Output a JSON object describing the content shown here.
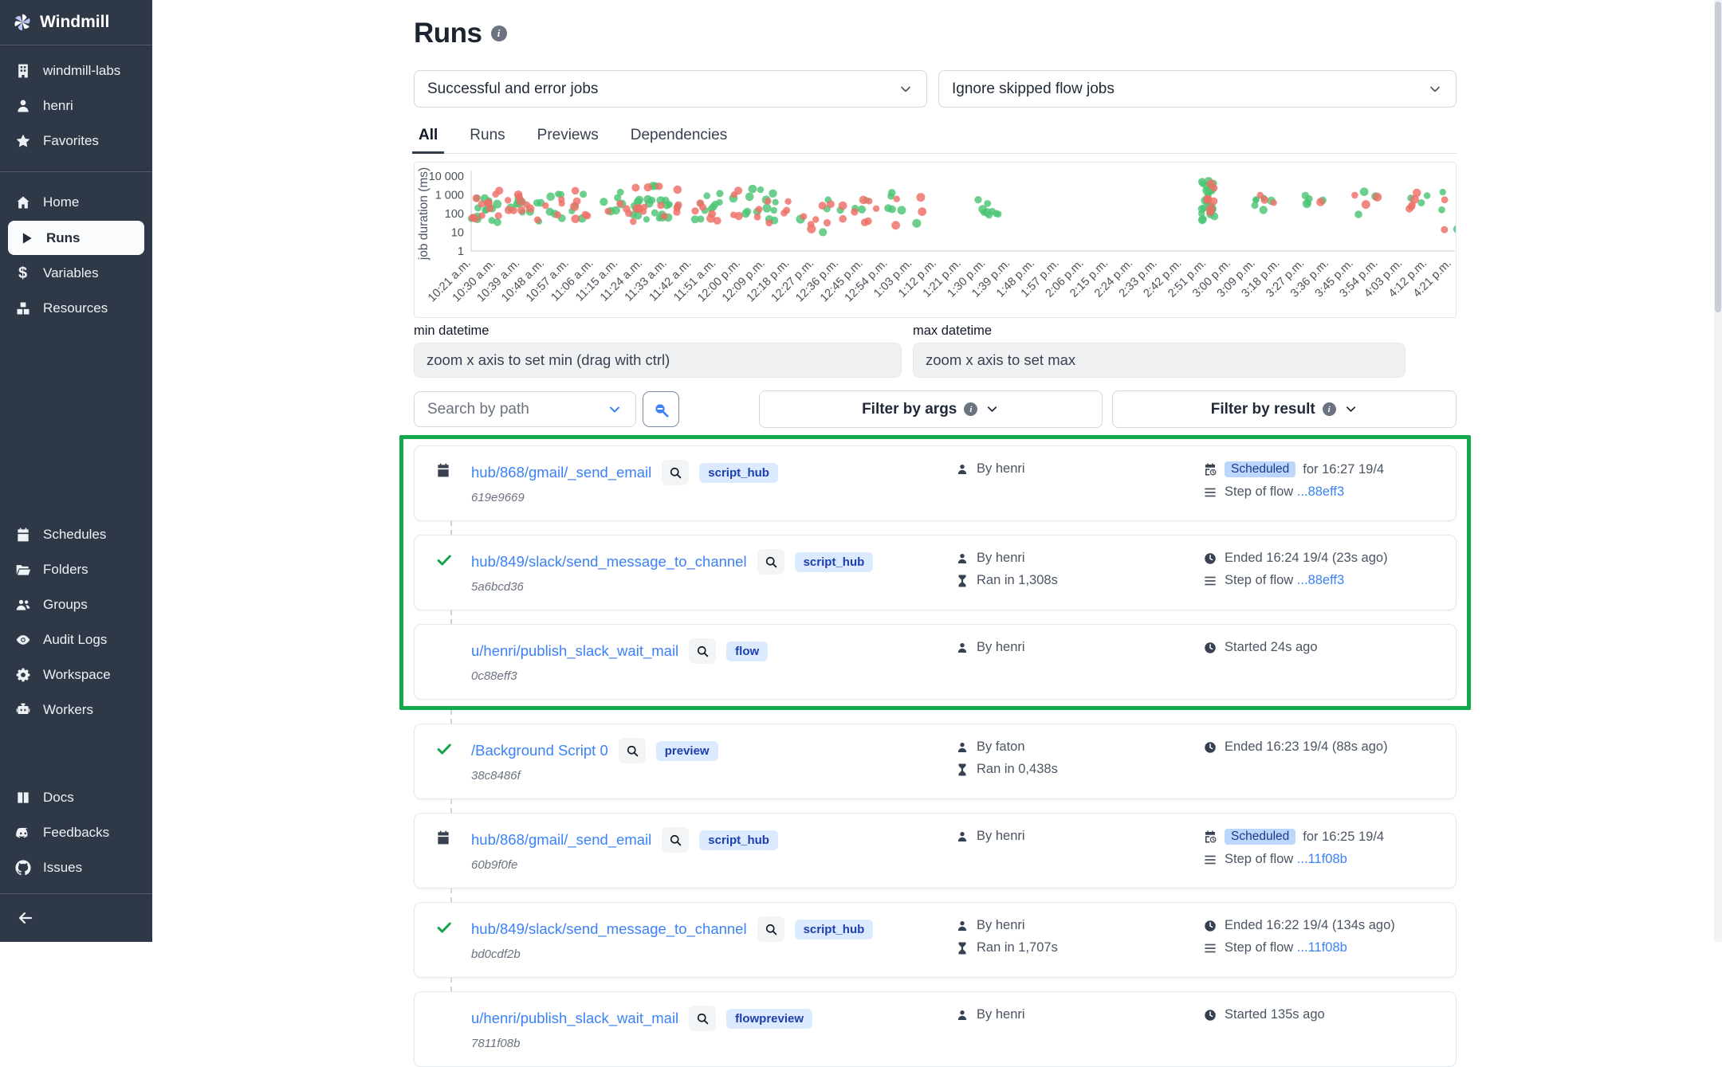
{
  "sidebar": {
    "logo_label": "Windmill",
    "workspace_items": [
      {
        "icon": "building-icon",
        "label": "windmill-labs"
      },
      {
        "icon": "user-icon",
        "label": "henri"
      },
      {
        "icon": "star-icon",
        "label": "Favorites"
      }
    ],
    "nav_items": [
      {
        "icon": "home-icon",
        "label": "Home",
        "active": false
      },
      {
        "icon": "play-icon",
        "label": "Runs",
        "active": true
      },
      {
        "icon": "dollar-icon",
        "label": "Variables",
        "active": false
      },
      {
        "icon": "cubes-icon",
        "label": "Resources",
        "active": false
      }
    ],
    "admin_items": [
      {
        "icon": "calendar-icon",
        "label": "Schedules"
      },
      {
        "icon": "folder-icon",
        "label": "Folders"
      },
      {
        "icon": "groups-icon",
        "label": "Groups"
      },
      {
        "icon": "eye-icon",
        "label": "Audit Logs"
      },
      {
        "icon": "gear-icon",
        "label": "Workspace"
      },
      {
        "icon": "robot-icon",
        "label": "Workers"
      }
    ],
    "footer_items": [
      {
        "icon": "book-icon",
        "label": "Docs"
      },
      {
        "icon": "discord-icon",
        "label": "Feedbacks"
      },
      {
        "icon": "github-icon",
        "label": "Issues"
      }
    ]
  },
  "header": {
    "title": "Runs",
    "job_filter": {
      "value": "Successful and error jobs"
    },
    "flow_filter": {
      "value": "Ignore skipped flow jobs"
    },
    "tabs": [
      {
        "label": "All",
        "active": true
      },
      {
        "label": "Runs",
        "active": false
      },
      {
        "label": "Previews",
        "active": false
      },
      {
        "label": "Dependencies",
        "active": false
      }
    ]
  },
  "chart_data": {
    "type": "scatter",
    "ylabel": "job duration (ms)",
    "y_scale": "log",
    "y_ticks": [
      10000,
      1000,
      100,
      10,
      1
    ],
    "y_tick_labels": [
      "10 000",
      "1 000",
      "100",
      "10",
      "1"
    ],
    "x_tick_labels": [
      "10:21 a.m.",
      "10:30 a.m.",
      "10:39 a.m.",
      "10:48 a.m.",
      "10:57 a.m.",
      "11:06 a.m.",
      "11:15 a.m.",
      "11:24 a.m.",
      "11:33 a.m.",
      "11:42 a.m.",
      "11:51 a.m.",
      "12:00 p.m.",
      "12:09 p.m.",
      "12:18 p.m.",
      "12:27 p.m.",
      "12:36 p.m.",
      "12:45 p.m.",
      "12:54 p.m.",
      "1:03 p.m.",
      "1:12 p.m.",
      "1:21 p.m.",
      "1:30 p.m.",
      "1:39 p.m.",
      "1:48 p.m.",
      "1:57 p.m.",
      "2:06 p.m.",
      "2:15 p.m.",
      "2:24 p.m.",
      "2:33 p.m.",
      "2:42 p.m.",
      "2:51 p.m.",
      "3:00 p.m.",
      "3:09 p.m.",
      "3:18 p.m.",
      "3:27 p.m.",
      "3:36 p.m.",
      "3:45 p.m.",
      "3:54 p.m.",
      "4:03 p.m.",
      "4:12 p.m.",
      "4:21 p.m."
    ],
    "x_minutes_per_tick": 9,
    "series": [
      {
        "name": "success",
        "color": "#4cc474"
      },
      {
        "name": "error",
        "color": "#ee6f66"
      }
    ],
    "clusters": [
      {
        "start_min": 0,
        "end_min": 12,
        "success": 14,
        "error": 12,
        "min_ms": 30,
        "max_ms": 2000
      },
      {
        "start_min": 12,
        "end_min": 26,
        "success": 10,
        "error": 10,
        "min_ms": 30,
        "max_ms": 1500
      },
      {
        "start_min": 27,
        "end_min": 44,
        "success": 10,
        "error": 10,
        "min_ms": 40,
        "max_ms": 2000
      },
      {
        "start_min": 48,
        "end_min": 62,
        "success": 12,
        "error": 8,
        "min_ms": 30,
        "max_ms": 2500
      },
      {
        "start_min": 63,
        "end_min": 78,
        "success": 16,
        "error": 10,
        "min_ms": 30,
        "max_ms": 3000
      },
      {
        "start_min": 80,
        "end_min": 92,
        "success": 10,
        "error": 6,
        "min_ms": 40,
        "max_ms": 1500
      },
      {
        "start_min": 96,
        "end_min": 112,
        "success": 14,
        "error": 8,
        "min_ms": 30,
        "max_ms": 2500
      },
      {
        "start_min": 114,
        "end_min": 132,
        "success": 4,
        "error": 10,
        "min_ms": 8,
        "max_ms": 800
      },
      {
        "start_min": 134,
        "end_min": 150,
        "success": 4,
        "error": 8,
        "min_ms": 8,
        "max_ms": 700
      },
      {
        "start_min": 152,
        "end_min": 166,
        "success": 6,
        "error": 4,
        "min_ms": 20,
        "max_ms": 1500
      },
      {
        "start_min": 186,
        "end_min": 194,
        "success": 9,
        "error": 0,
        "min_ms": 60,
        "max_ms": 700
      },
      {
        "start_min": 268,
        "end_min": 273,
        "success": 26,
        "error": 7,
        "min_ms": 40,
        "max_ms": 6000
      },
      {
        "start_min": 286,
        "end_min": 296,
        "success": 6,
        "error": 3,
        "min_ms": 150,
        "max_ms": 1300
      },
      {
        "start_min": 305,
        "end_min": 315,
        "success": 5,
        "error": 1,
        "min_ms": 100,
        "max_ms": 1000
      },
      {
        "start_min": 323,
        "end_min": 333,
        "success": 3,
        "error": 3,
        "min_ms": 50,
        "max_ms": 1500
      },
      {
        "start_min": 341,
        "end_min": 351,
        "success": 3,
        "error": 5,
        "min_ms": 80,
        "max_ms": 1300
      },
      {
        "start_min": 356,
        "end_min": 364,
        "success": 3,
        "error": 3,
        "min_ms": 10,
        "max_ms": 1500
      }
    ]
  },
  "datetime_filters": {
    "min_label": "min datetime",
    "min_placeholder": "zoom x axis to set min (drag with ctrl)",
    "max_label": "max datetime",
    "max_placeholder": "zoom x axis to set max"
  },
  "toolbar": {
    "search_placeholder": "Search by path",
    "filter_args_label": "Filter by args",
    "filter_result_label": "Filter by result"
  },
  "runs": {
    "highlight_first_n": 3,
    "highlight_color": "#12a84b",
    "rows": [
      {
        "status_icon": "calendar-icon",
        "path": "hub/868/gmail/_send_email",
        "badge": "script_hub",
        "job_id": "619e9669",
        "by": "By henri",
        "time_icon": "calendar-clock-icon",
        "time_badge": "Scheduled",
        "time_text": "for 16:27 19/4",
        "flow_text": "Step of flow",
        "flow_link": "...88eff3"
      },
      {
        "status_icon": "check-icon",
        "path": "hub/849/slack/send_message_to_channel",
        "badge": "script_hub",
        "job_id": "5a6bcd36",
        "by": "By henri",
        "ran_in": "Ran in 1,308s",
        "time_icon": "clock-icon",
        "time_text": "Ended 16:24 19/4 (23s ago)",
        "flow_text": "Step of flow",
        "flow_link": "...88eff3"
      },
      {
        "status_icon": "dot-icon",
        "path": "u/henri/publish_slack_wait_mail",
        "badge": "flow",
        "job_id": "0c88eff3",
        "by": "By henri",
        "time_icon": "clock-icon",
        "time_text": "Started 24s ago"
      },
      {
        "status_icon": "check-icon",
        "path": "/Background Script 0",
        "badge": "preview",
        "job_id": "38c8486f",
        "by": "By faton",
        "ran_in": "Ran in 0,438s",
        "time_icon": "clock-icon",
        "time_text": "Ended 16:23 19/4 (88s ago)"
      },
      {
        "status_icon": "calendar-icon",
        "path": "hub/868/gmail/_send_email",
        "badge": "script_hub",
        "job_id": "60b9f0fe",
        "by": "By henri",
        "time_icon": "calendar-clock-icon",
        "time_badge": "Scheduled",
        "time_text": "for 16:25 19/4",
        "flow_text": "Step of flow",
        "flow_link": "...11f08b"
      },
      {
        "status_icon": "check-icon",
        "path": "hub/849/slack/send_message_to_channel",
        "badge": "script_hub",
        "job_id": "bd0cdf2b",
        "by": "By henri",
        "ran_in": "Ran in 1,707s",
        "time_icon": "clock-icon",
        "time_text": "Ended 16:22 19/4 (134s ago)",
        "flow_text": "Step of flow",
        "flow_link": "...11f08b"
      },
      {
        "status_icon": "dot-icon",
        "path": "u/henri/publish_slack_wait_mail",
        "badge": "flowpreview",
        "job_id": "7811f08b",
        "by": "By henri",
        "time_icon": "clock-icon",
        "time_text": "Started 135s ago"
      }
    ]
  }
}
